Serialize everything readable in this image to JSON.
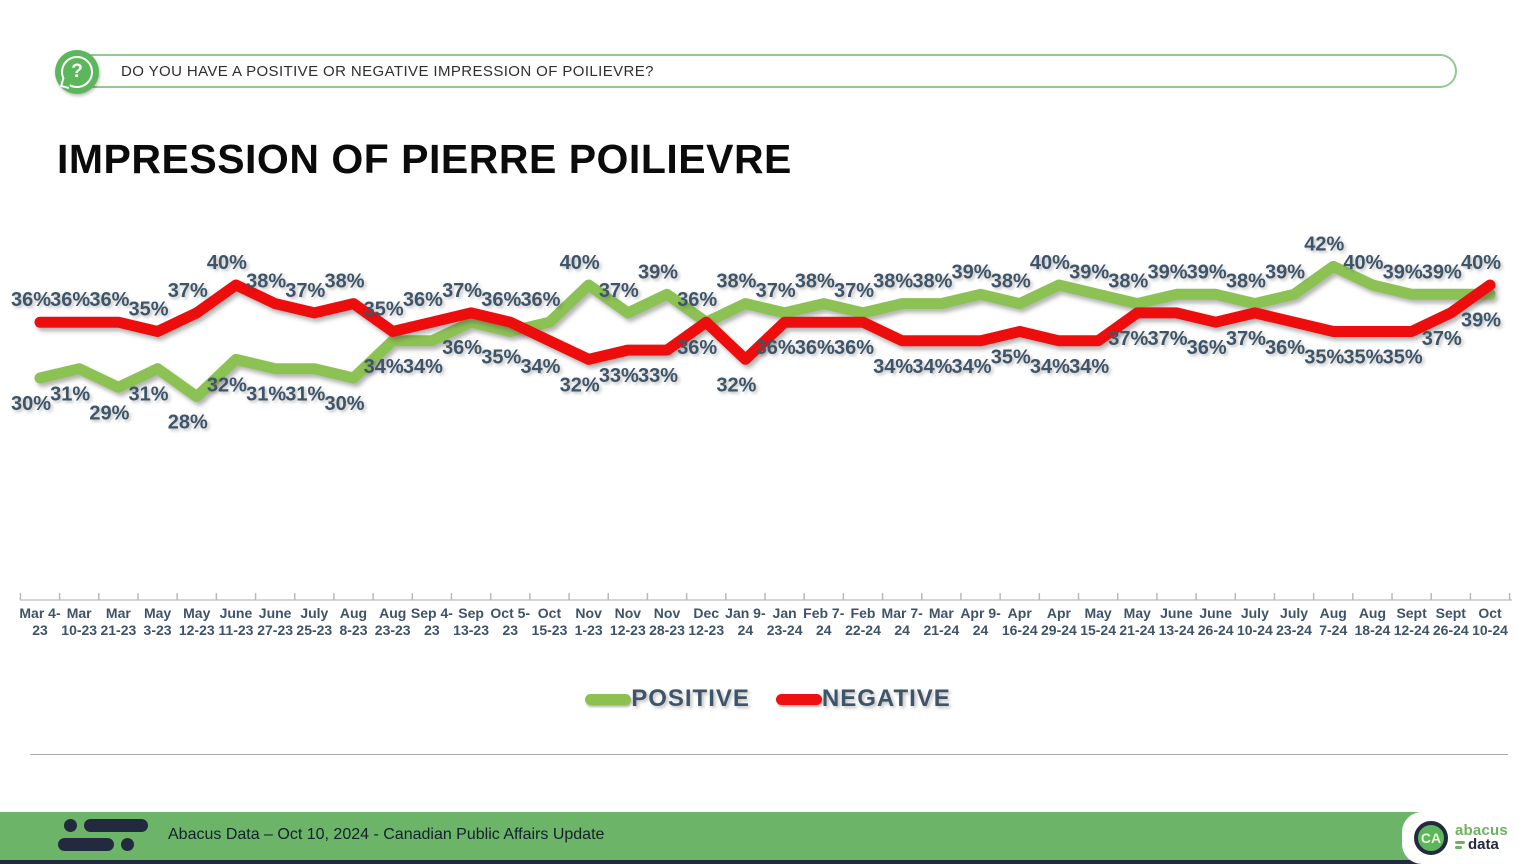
{
  "banner": {
    "question": "DO YOU HAVE A POSITIVE OR NEGATIVE IMPRESSION OF POILIEVRE?"
  },
  "title": "IMPRESSION OF PIERRE POILIEVRE",
  "chart_data": {
    "type": "line",
    "title": "Impression of Pierre Poilievre over time",
    "categories": [
      "Mar 4-|23",
      "Mar|10-23",
      "Mar|21-23",
      "May|3-23",
      "May|12-23",
      "June|11-23",
      "June|27-23",
      "July|25-23",
      "Aug|8-23",
      "Aug|23-23",
      "Sep 4-|23",
      "Sep|13-23",
      "Oct 5-|23",
      "Oct|15-23",
      "Nov|1-23",
      "Nov|12-23",
      "Nov|28-23",
      "Dec|12-23",
      "Jan 9-|24",
      "Jan|23-24",
      "Feb 7-|24",
      "Feb|22-24",
      "Mar 7-|24",
      "Mar|21-24",
      "Apr 9-|24",
      "Apr|16-24",
      "Apr|29-24",
      "May|15-24",
      "May|21-24",
      "June|13-24",
      "June|26-24",
      "July|10-24",
      "July|23-24",
      "Aug|7-24",
      "Aug|18-24",
      "Sept|12-24",
      "Sept|26-24",
      "Oct|10-24"
    ],
    "series": [
      {
        "name": "POSITIVE",
        "color": "#8CC152",
        "values": [
          30,
          31,
          29,
          31,
          28,
          32,
          31,
          31,
          30,
          34,
          34,
          36,
          35,
          36,
          40,
          37,
          39,
          36,
          38,
          37,
          38,
          37,
          38,
          38,
          39,
          38,
          40,
          39,
          38,
          39,
          39,
          38,
          39,
          42,
          40,
          39,
          39,
          39
        ]
      },
      {
        "name": "NEGATIVE",
        "color": "#EE1010",
        "values": [
          36,
          36,
          36,
          35,
          37,
          40,
          38,
          37,
          38,
          35,
          36,
          37,
          36,
          34,
          32,
          33,
          33,
          36,
          32,
          36,
          36,
          36,
          34,
          34,
          34,
          35,
          34,
          34,
          37,
          37,
          36,
          37,
          36,
          35,
          35,
          35,
          37,
          40
        ]
      }
    ],
    "label_format": "percent",
    "data_labels": true,
    "ylim": [
      26,
      44
    ],
    "grid": false,
    "legend_position": "bottom"
  },
  "footer": {
    "text": "Abacus Data – Oct 10, 2024 - Canadian Public Affairs Update",
    "brand": {
      "ca_badge": "CA",
      "wordmark_top": "abacus",
      "wordmark_bottom": "data"
    }
  },
  "colors": {
    "positive": "#8CC152",
    "negative": "#EE1010",
    "label_text": "#3E5468",
    "axis_text": "#3F5368",
    "banner_border": "#8FCB8F",
    "icon_green": "#5BB65C",
    "footer_green": "#6CB468",
    "brand_navy": "#232A40",
    "brand_green": "#6CB35F"
  }
}
